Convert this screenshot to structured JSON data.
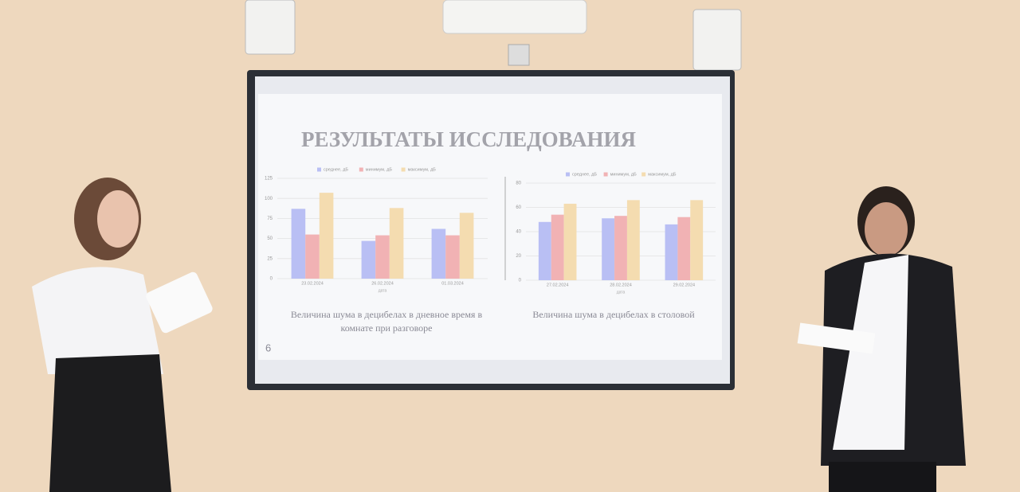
{
  "slide": {
    "title": "РЕЗУЛЬТАТЫ ИССЛЕДОВАНИЯ",
    "number": 6
  },
  "chart_data": [
    {
      "type": "bar",
      "caption": "Величина шума в децибелах в дневное время в комнате при разговоре",
      "x_label": "дата",
      "categories": [
        "23.02.2024",
        "26.02.2024",
        "01.03.2024"
      ],
      "series": [
        {
          "name": "среднее, дБ",
          "color": "#b9bff4",
          "values": [
            87,
            47,
            62
          ]
        },
        {
          "name": "минимум, дБ",
          "color": "#f1b2b4",
          "values": [
            55,
            54,
            54
          ]
        },
        {
          "name": "максимум, дБ",
          "color": "#f4dcb0",
          "values": [
            107,
            88,
            82
          ]
        }
      ],
      "ylim": [
        0,
        125
      ],
      "yticks": [
        0,
        25,
        50,
        75,
        100,
        125
      ],
      "grid": true
    },
    {
      "type": "bar",
      "caption": "Величина шума в децибелах в столовой",
      "x_label": "дата",
      "categories": [
        "27.02.2024",
        "28.02.2024",
        "29.02.2024"
      ],
      "series": [
        {
          "name": "среднее, дБ",
          "color": "#b9bff4",
          "values": [
            48,
            51,
            46
          ]
        },
        {
          "name": "минимум, дБ",
          "color": "#f1b2b4",
          "values": [
            54,
            53,
            52
          ]
        },
        {
          "name": "максимум, дБ",
          "color": "#f4dcb0",
          "values": [
            63,
            66,
            66
          ]
        }
      ],
      "ylim": [
        0,
        80
      ],
      "yticks": [
        0,
        20,
        40,
        60,
        80
      ],
      "grid": true
    }
  ]
}
